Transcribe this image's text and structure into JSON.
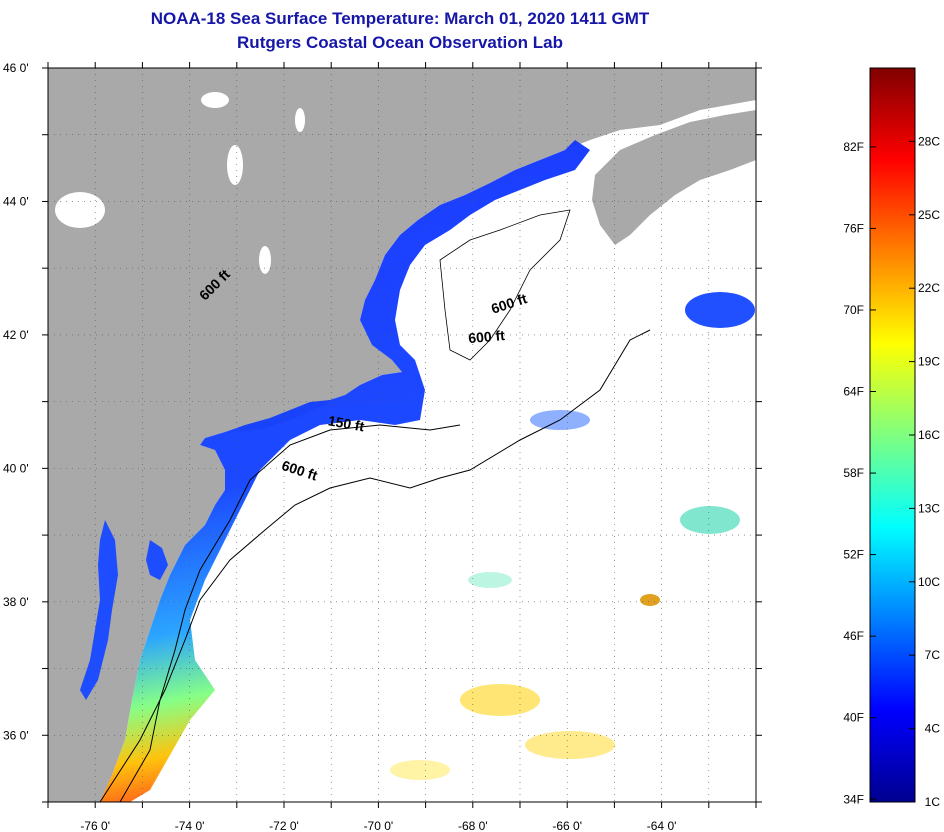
{
  "title": {
    "line1": "NOAA-18 Sea Surface Temperature:  March 01, 2020 1411 GMT",
    "line2": "Rutgers Coastal Ocean Observation Lab"
  },
  "map": {
    "lon_range": [
      -77.0,
      -62.0
    ],
    "lat_range": [
      35.0,
      46.0
    ],
    "lon_ticks": [
      {
        "value": -76,
        "label": "-76 0'"
      },
      {
        "value": -74,
        "label": "-74 0'"
      },
      {
        "value": -72,
        "label": "-72 0'"
      },
      {
        "value": -70,
        "label": "-70 0'"
      },
      {
        "value": -68,
        "label": "-68 0'"
      },
      {
        "value": -66,
        "label": "-66 0'"
      },
      {
        "value": -64,
        "label": "-64 0'"
      }
    ],
    "lat_ticks": [
      {
        "value": 46,
        "label": "46 0'"
      },
      {
        "value": 44,
        "label": "44 0'"
      },
      {
        "value": 42,
        "label": "42 0'"
      },
      {
        "value": 40,
        "label": "40 0'"
      },
      {
        "value": 38,
        "label": "38 0'"
      },
      {
        "value": 36,
        "label": "36 0'"
      }
    ],
    "contour_labels": [
      {
        "text": "600 ft",
        "lon": -73.4,
        "lat": 42.7,
        "rotate": 45
      },
      {
        "text": "600 ft",
        "lon": -67.2,
        "lat": 42.4,
        "rotate": 18
      },
      {
        "text": "600 ft",
        "lon": -67.7,
        "lat": 41.9,
        "rotate": 5
      },
      {
        "text": "150 ft",
        "lon": -70.7,
        "lat": 40.6,
        "rotate": -10
      },
      {
        "text": "600 ft",
        "lon": -71.7,
        "lat": 39.9,
        "rotate": -18
      }
    ],
    "colors": {
      "land": "#a9a9a9",
      "cloud": "#ffffff",
      "frame": "#000000"
    }
  },
  "colorbar": {
    "f_labels": [
      "82F",
      "76F",
      "70F",
      "64F",
      "58F",
      "52F",
      "46F",
      "40F",
      "34F"
    ],
    "c_labels": [
      "28C",
      "25C",
      "22C",
      "19C",
      "16C",
      "13C",
      "10C",
      "7C",
      "4C",
      "1C"
    ],
    "range_c": [
      1,
      31
    ]
  }
}
